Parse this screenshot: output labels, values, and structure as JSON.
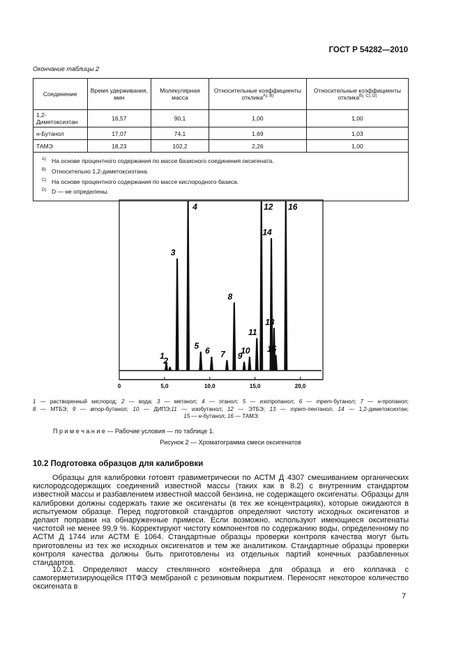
{
  "header": {
    "code": "ГОСТ Р 54282—2010"
  },
  "table": {
    "caption": "Окончание таблицы 2",
    "head": [
      {
        "text": "Соединение"
      },
      {
        "text": "Время удерживания, мин"
      },
      {
        "text": "Молекулярная масса"
      },
      {
        "text": "Относительные коэффициенты отклика",
        "sup": "А), В)"
      },
      {
        "text": "Относительные коэффициенты отклика",
        "sup": "В), С), D)"
      }
    ],
    "rows": [
      [
        "1,2-Диметоксиэтан",
        "16,57",
        "90,1",
        "1,00",
        "1,00"
      ],
      [
        "н-Бутанол",
        "17,07",
        "74,1",
        "1,69",
        "1,03"
      ],
      [
        "ТАМЭ",
        "18,23",
        "102,2",
        "2,26",
        "1,00"
      ]
    ],
    "footnotes": [
      {
        "mark": "А)",
        "text": "На основе процентного содержания по массе базисного соединения оксигената."
      },
      {
        "mark": "В)",
        "text": "Относительно 1,2-диметоксиэтана."
      },
      {
        "mark": "С)",
        "text": "На основе процентного содержания по массе кислородного базиса."
      },
      {
        "mark": "D)",
        "text": "D — не определены."
      }
    ]
  },
  "figure": {
    "xlim": [
      0,
      22.5
    ],
    "ylim": [
      0,
      100
    ],
    "xticks": [
      0,
      {
        "value": 5,
        "label": "5,0"
      },
      {
        "value": 10,
        "label": "10,0"
      },
      {
        "value": 15,
        "label": "15,0"
      },
      {
        "value": 20,
        "label": "20,0"
      }
    ],
    "peaks": [
      {
        "label": "1",
        "x": 5.2,
        "height": 5
      },
      {
        "label": "2",
        "x": 5.6,
        "height": 2
      },
      {
        "label": "3",
        "x": 6.4,
        "height": 66
      },
      {
        "label": "4",
        "x": 7.6,
        "height": 100
      },
      {
        "label": "5",
        "x": 9.0,
        "height": 11
      },
      {
        "label": "6",
        "x": 10.2,
        "height": 8
      },
      {
        "label": "7",
        "x": 11.9,
        "height": 6
      },
      {
        "label": "8",
        "x": 12.7,
        "height": 40
      },
      {
        "label": "9",
        "x": 13.8,
        "height": 5
      },
      {
        "label": "10",
        "x": 14.4,
        "height": 8
      },
      {
        "label": "11",
        "x": 15.2,
        "height": 19
      },
      {
        "label": "12",
        "x": 15.7,
        "height": 100
      },
      {
        "label": "13",
        "x": 17.1,
        "height": 25
      },
      {
        "label": "14",
        "x": 16.8,
        "height": 78
      },
      {
        "label": "15",
        "x": 17.3,
        "height": 9
      },
      {
        "label": "16",
        "x": 18.4,
        "height": 100
      }
    ],
    "legend": [
      [
        {
          "t": "1",
          "i": true
        },
        {
          "t": " — растворенный кислород; "
        },
        {
          "t": "2",
          "i": true
        },
        {
          "t": " — вода; "
        },
        {
          "t": "3",
          "i": true
        },
        {
          "t": " — метанол; "
        },
        {
          "t": "4",
          "i": true
        },
        {
          "t": " — этанол; "
        },
        {
          "t": "5",
          "i": true
        },
        {
          "t": " — изопропанол; "
        },
        {
          "t": "6",
          "i": true
        },
        {
          "t": " — "
        },
        {
          "t": "трет",
          "i": true
        },
        {
          "t": "-бутанол; "
        },
        {
          "t": "7",
          "i": true
        },
        {
          "t": " — "
        },
        {
          "t": "н",
          "i": true
        },
        {
          "t": "-пропанол;"
        }
      ],
      [
        {
          "t": "8",
          "i": true
        },
        {
          "t": " — МТБЭ; "
        },
        {
          "t": "9",
          "i": true
        },
        {
          "t": " — "
        },
        {
          "t": "втор",
          "i": true
        },
        {
          "t": "-бутанол; "
        },
        {
          "t": "10",
          "i": true
        },
        {
          "t": " — ДИПЭ;"
        },
        {
          "t": "11",
          "i": true
        },
        {
          "t": " — изобутанол; "
        },
        {
          "t": "12",
          "i": true
        },
        {
          "t": " — ЭТБЭ; "
        },
        {
          "t": "13",
          "i": true
        },
        {
          "t": " — "
        },
        {
          "t": "трет",
          "i": true
        },
        {
          "t": "-пентанол; "
        },
        {
          "t": "14",
          "i": true
        },
        {
          "t": " — 1,2-диметоксиэтан;"
        }
      ],
      [
        {
          "t": "15",
          "i": true
        },
        {
          "t": " — "
        },
        {
          "t": "н",
          "i": true
        },
        {
          "t": "-бутанол; "
        },
        {
          "t": "16",
          "i": true
        },
        {
          "t": " — ТАМЭ"
        }
      ]
    ],
    "note": "П р и м е ч а н и е — Рабочие условия — по таблице 1.",
    "caption": "Рисунок 2 — Хроматограмма смеси оксигенатов"
  },
  "section": {
    "heading": "10.2 Подготовка образцов для калибровки",
    "paragraphs": [
      "Образцы для калибровки готовят гравиметрически по АСТМ Д 4307 смешиванием органических кислородсодержащих соединений известной массы (таких как в 8.2) с внутренним стандартом известной массы и разбавлением известной массой бензина, не содержащего оксигенаты. Образцы для калибровки должны содержать такие же оксигенаты (в тех же концентрациях), которые ожидаются в испытуемом образце. Перед подготовкой стандартов определяют чистоту исходных оксигенатов и делают поправки на обнаруженные примеси. Если возможно, используют имеющиеся оксигенаты чистотой не менее 99,9 %. Корректируют чистоту компонентов по содержанию воды, определенному по АСТМ Д 1744 или АСТМ Е 1064. Стандартные образцы проверки контроля качества могут быть приготовлены из тех же исходных оксигенатов и тем же аналитиком. Стандартные образцы проверки контроля качества должны быть приготовлены из отдельных партий конечных разбавленных стандартов.",
      "10.2.1 Определяют массу стеклянного контейнера для образца и его колпачка с самогерметизирующейся ПТФЭ мембраной с резиновым покрытием. Переносят некоторое количество оксигената в"
    ]
  },
  "page_number": "7"
}
